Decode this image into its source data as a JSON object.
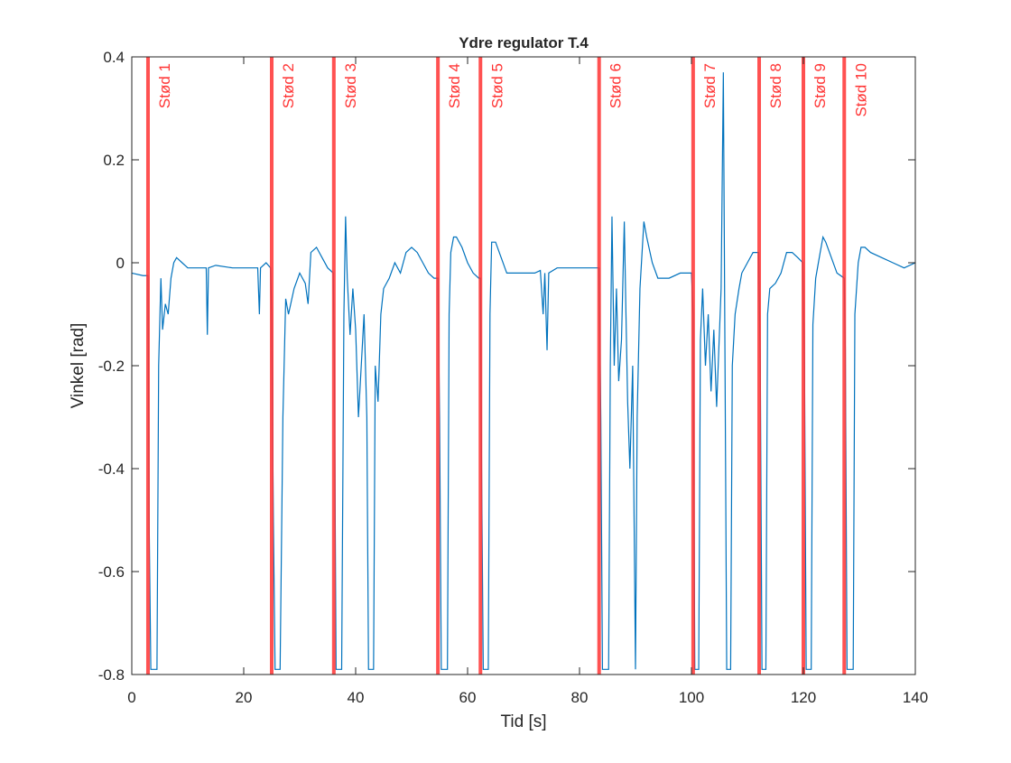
{
  "chart_data": {
    "type": "line",
    "title": "Ydre regulator T.4",
    "xlabel": "Tid [s]",
    "ylabel": "Vinkel [rad]",
    "color": "#0072bd",
    "event_color": "#ff3333",
    "xlim": [
      0,
      140
    ],
    "ylim": [
      -0.8,
      0.4
    ],
    "xticks": [
      0,
      20,
      40,
      60,
      80,
      100,
      120,
      140
    ],
    "yticks": [
      -0.8,
      -0.6,
      -0.4,
      -0.2,
      0,
      0.2,
      0.4
    ],
    "events": [
      {
        "x": 2.9,
        "label": "Stød 1"
      },
      {
        "x": 25.0,
        "label": "Stød 2"
      },
      {
        "x": 36.1,
        "label": "Stød 3"
      },
      {
        "x": 54.7,
        "label": "Stød 4"
      },
      {
        "x": 62.3,
        "label": "Stød 5"
      },
      {
        "x": 83.5,
        "label": "Stød 6"
      },
      {
        "x": 100.3,
        "label": "Stød 7"
      },
      {
        "x": 112.1,
        "label": "Stød 8"
      },
      {
        "x": 120.0,
        "label": "Stød 9"
      },
      {
        "x": 127.3,
        "label": "Stød 10"
      }
    ],
    "x": [
      0,
      2,
      2.9,
      3.1,
      3.4,
      4.5,
      4.8,
      5.2,
      5.5,
      6,
      6.5,
      7,
      7.5,
      8,
      9,
      10,
      12,
      13.3,
      13.5,
      13.7,
      15,
      18,
      21,
      22.5,
      22.8,
      23,
      24,
      24.8,
      25.0,
      25.3,
      25.6,
      26.5,
      27,
      27.5,
      28,
      29,
      30,
      31,
      31.5,
      32,
      33,
      34,
      35,
      36,
      36.2,
      36.5,
      37.5,
      37.9,
      38.2,
      38.5,
      39,
      39.5,
      40,
      40.5,
      41,
      41.5,
      42,
      42.3,
      43.2,
      43.5,
      44,
      44.5,
      45,
      46,
      47,
      48,
      49,
      50,
      51,
      52,
      53,
      54,
      54.7,
      55,
      55.3,
      56.4,
      56.7,
      57,
      57.5,
      58,
      59,
      60,
      61,
      62,
      62.3,
      62.5,
      62.8,
      63.7,
      64,
      64.3,
      65,
      66,
      67,
      68,
      70,
      72,
      73,
      73.5,
      73.8,
      74.2,
      74.5,
      76,
      78,
      80,
      82,
      83.5,
      83.8,
      84.1,
      85.2,
      85.5,
      85.8,
      86.2,
      86.6,
      87,
      87.5,
      88,
      88.3,
      88.6,
      89,
      89.5,
      90,
      90.3,
      90.8,
      91.5,
      92,
      93,
      94,
      96,
      98,
      100,
      100.3,
      100.6,
      101.3,
      101.6,
      102,
      102.5,
      103,
      103.5,
      104,
      104.5,
      105.3,
      105.7,
      106,
      106.3,
      107,
      107.3,
      107.8,
      108.5,
      109,
      110,
      111,
      112,
      112.3,
      112.6,
      113.3,
      113.6,
      114,
      115,
      116,
      117,
      118,
      119,
      119.9,
      120.2,
      120.5,
      121.4,
      121.7,
      122.2,
      123,
      123.5,
      124,
      125,
      126,
      127.3,
      127.5,
      127.8,
      128.9,
      129.2,
      129.8,
      130.3,
      131,
      132,
      134,
      136,
      138,
      140
    ],
    "values": [
      -0.02,
      -0.025,
      -0.025,
      -0.5,
      -0.79,
      -0.79,
      -0.2,
      -0.03,
      -0.13,
      -0.08,
      -0.1,
      -0.03,
      0,
      0.01,
      0,
      -0.01,
      -0.01,
      -0.01,
      -0.14,
      -0.01,
      -0.005,
      -0.01,
      -0.01,
      -0.01,
      -0.1,
      -0.01,
      0,
      -0.01,
      -0.1,
      -0.5,
      -0.79,
      -0.79,
      -0.3,
      -0.07,
      -0.1,
      -0.05,
      -0.02,
      -0.04,
      -0.08,
      0.02,
      0.03,
      0.01,
      -0.01,
      -0.02,
      -0.2,
      -0.79,
      -0.79,
      -0.1,
      0.09,
      -0.03,
      -0.14,
      -0.05,
      -0.13,
      -0.3,
      -0.2,
      -0.1,
      -0.3,
      -0.79,
      -0.79,
      -0.2,
      -0.27,
      -0.1,
      -0.05,
      -0.03,
      0,
      -0.02,
      0.02,
      0.03,
      0.02,
      0,
      -0.02,
      -0.03,
      -0.03,
      -0.3,
      -0.79,
      -0.79,
      -0.1,
      0.02,
      0.05,
      0.05,
      0.03,
      0,
      -0.02,
      -0.03,
      -0.03,
      -0.4,
      -0.79,
      -0.79,
      -0.1,
      0.04,
      0.04,
      0.01,
      -0.02,
      -0.02,
      -0.02,
      -0.02,
      -0.015,
      -0.1,
      -0.02,
      -0.17,
      -0.02,
      -0.01,
      -0.01,
      -0.01,
      -0.01,
      -0.01,
      -0.3,
      -0.79,
      -0.79,
      -0.2,
      0.09,
      -0.2,
      -0.05,
      -0.23,
      -0.15,
      0.08,
      -0.1,
      -0.27,
      -0.4,
      -0.2,
      -0.79,
      -0.3,
      -0.05,
      0.08,
      0.05,
      0,
      -0.03,
      -0.03,
      -0.02,
      -0.02,
      -0.1,
      -0.79,
      -0.79,
      -0.15,
      -0.05,
      -0.2,
      -0.1,
      -0.25,
      -0.13,
      -0.28,
      -0.05,
      0.37,
      -0.2,
      -0.79,
      -0.79,
      -0.2,
      -0.1,
      -0.05,
      -0.02,
      0,
      0.02,
      0.02,
      -0.2,
      -0.79,
      -0.79,
      -0.1,
      -0.05,
      -0.04,
      -0.02,
      0.02,
      0.02,
      0.01,
      0,
      -0.2,
      -0.79,
      -0.79,
      -0.12,
      -0.03,
      0.02,
      0.05,
      0.04,
      0.01,
      -0.02,
      -0.03,
      -0.17,
      -0.79,
      -0.79,
      -0.1,
      0,
      0.03,
      0.03,
      0.02,
      0.01,
      0,
      -0.01,
      0
    ]
  }
}
